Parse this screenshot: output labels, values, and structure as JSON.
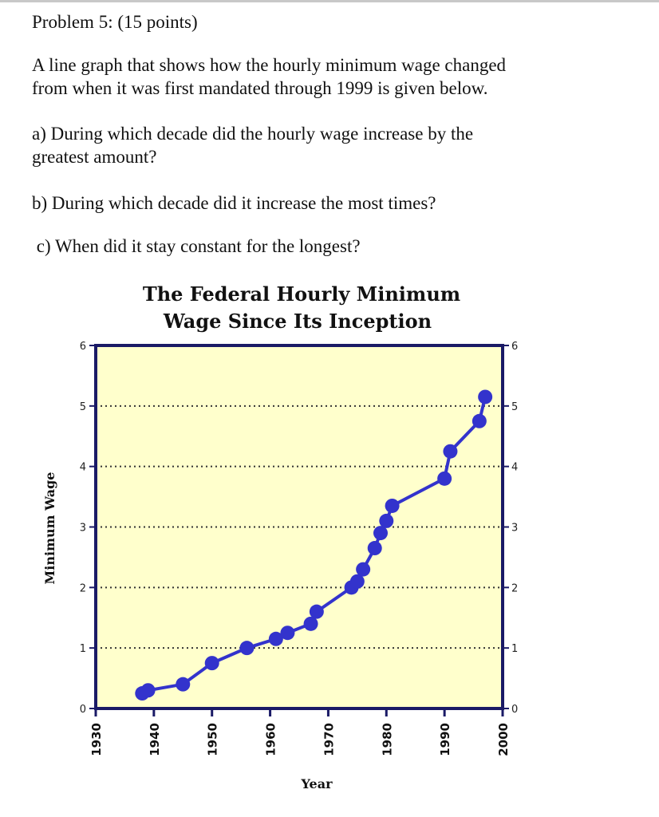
{
  "problem": {
    "heading": "Problem 5: (15 points)",
    "intro_line1": "A line graph that shows how the hourly minimum wage changed",
    "intro_line2": "from when it was first mandated through 1999 is given below.",
    "qa_line1": "a) During which decade did the hourly wage increase by the",
    "qa_line2": "greatest amount?",
    "qb": "b) During which decade did it increase the most times?",
    "qc": " c) When did it stay constant for the longest?"
  },
  "chart_data": {
    "type": "line",
    "title_line1": "The Federal Hourly Minimum",
    "title_line2": "Wage Since Its Inception",
    "xlabel": "Year",
    "ylabel": "Minimum Wage",
    "xlim": [
      1930,
      2000
    ],
    "ylim": [
      0,
      6
    ],
    "xticks": [
      "1930",
      "1940",
      "1950",
      "1960",
      "1970",
      "1980",
      "1990",
      "2000"
    ],
    "yticks": [
      "0",
      "1",
      "2",
      "3",
      "4",
      "5",
      "6"
    ],
    "grid": "horizontal dotted",
    "colors": {
      "background": "#ffffcc",
      "frame": "#1a1a66",
      "series": "#3333cc",
      "grid": "#333333"
    },
    "x": [
      1938,
      1939,
      1945,
      1950,
      1956,
      1961,
      1963,
      1967,
      1968,
      1974,
      1975,
      1976,
      1978,
      1979,
      1980,
      1981,
      1990,
      1991,
      1996,
      1997
    ],
    "y": [
      0.25,
      0.3,
      0.4,
      0.75,
      1.0,
      1.15,
      1.25,
      1.4,
      1.6,
      2.0,
      2.1,
      2.3,
      2.65,
      2.9,
      3.1,
      3.35,
      3.8,
      4.25,
      4.75,
      5.15
    ]
  }
}
